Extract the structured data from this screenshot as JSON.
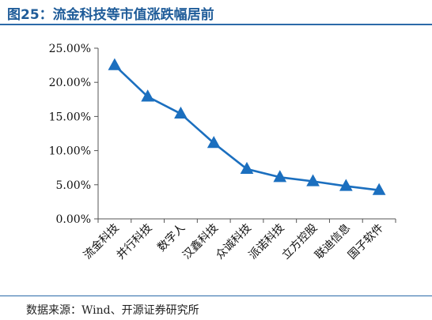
{
  "title": "图25：流金科技等市值涨跌幅居前",
  "source": "数据来源：Wind、开源证券研究所",
  "colors": {
    "series": "#1b6fbf",
    "title": "#1f5c99",
    "rule": "#2b6aa8"
  },
  "chart_data": {
    "type": "line",
    "categories": [
      "流金科技",
      "并行科技",
      "数字人",
      "汉鑫科技",
      "众诚科技",
      "派诺科技",
      "立方控股",
      "联迪信息",
      "国子软件"
    ],
    "series": [
      {
        "values": [
          22.5,
          17.9,
          15.4,
          11.1,
          7.3,
          6.1,
          5.5,
          4.8,
          4.2
        ]
      }
    ],
    "yticks": [
      "0.00%",
      "5.00%",
      "10.00%",
      "15.00%",
      "20.00%",
      "25.00%"
    ],
    "ylim": [
      0,
      25
    ],
    "marker": "triangle",
    "grid": false,
    "legend": "none"
  }
}
